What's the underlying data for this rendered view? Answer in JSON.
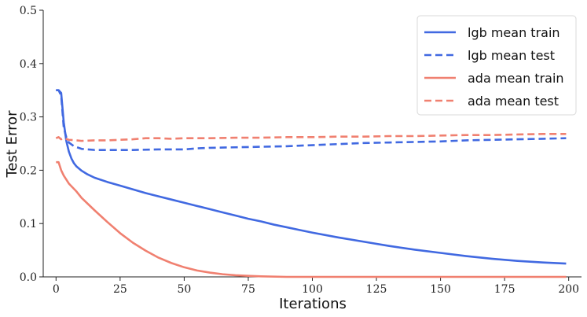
{
  "chart_data": {
    "type": "line",
    "title": "",
    "xlabel": "Iterations",
    "ylabel": "Test Error",
    "xlim": [
      -5,
      205
    ],
    "ylim": [
      0.0,
      0.5
    ],
    "x_ticks": [
      0,
      25,
      50,
      75,
      100,
      125,
      150,
      175,
      200
    ],
    "y_ticks": [
      0.0,
      0.1,
      0.2,
      0.3,
      0.4,
      0.5
    ],
    "x_tick_labels": [
      "0",
      "25",
      "50",
      "75",
      "100",
      "125",
      "150",
      "175",
      "200"
    ],
    "y_tick_labels": [
      "0.0",
      "0.1",
      "0.2",
      "0.3",
      "0.4",
      "0.5"
    ],
    "grid": false,
    "legend_position": "top-right",
    "series": [
      {
        "name": "lgb mean train",
        "color": "#4169e1",
        "dash": "solid",
        "points": [
          [
            0,
            0.35
          ],
          [
            1,
            0.35
          ],
          [
            2,
            0.345
          ],
          [
            3,
            0.29
          ],
          [
            4,
            0.255
          ],
          [
            5,
            0.235
          ],
          [
            6,
            0.222
          ],
          [
            7,
            0.213
          ],
          [
            8,
            0.207
          ],
          [
            10,
            0.199
          ],
          [
            12,
            0.193
          ],
          [
            15,
            0.186
          ],
          [
            20,
            0.178
          ],
          [
            25,
            0.171
          ],
          [
            30,
            0.164
          ],
          [
            35,
            0.157
          ],
          [
            40,
            0.151
          ],
          [
            45,
            0.145
          ],
          [
            50,
            0.139
          ],
          [
            55,
            0.133
          ],
          [
            60,
            0.127
          ],
          [
            65,
            0.121
          ],
          [
            70,
            0.115
          ],
          [
            75,
            0.109
          ],
          [
            80,
            0.104
          ],
          [
            85,
            0.098
          ],
          [
            90,
            0.093
          ],
          [
            95,
            0.088
          ],
          [
            100,
            0.083
          ],
          [
            110,
            0.074
          ],
          [
            120,
            0.066
          ],
          [
            130,
            0.058
          ],
          [
            140,
            0.051
          ],
          [
            150,
            0.045
          ],
          [
            160,
            0.039
          ],
          [
            170,
            0.034
          ],
          [
            180,
            0.03
          ],
          [
            190,
            0.027
          ],
          [
            199,
            0.025
          ]
        ]
      },
      {
        "name": "lgb mean test",
        "color": "#4169e1",
        "dash": "dashed",
        "points": [
          [
            0,
            0.35
          ],
          [
            1,
            0.35
          ],
          [
            2,
            0.34
          ],
          [
            3,
            0.28
          ],
          [
            4,
            0.262
          ],
          [
            5,
            0.252
          ],
          [
            7,
            0.245
          ],
          [
            10,
            0.24
          ],
          [
            15,
            0.238
          ],
          [
            20,
            0.238
          ],
          [
            30,
            0.238
          ],
          [
            40,
            0.239
          ],
          [
            50,
            0.239
          ],
          [
            55,
            0.241
          ],
          [
            60,
            0.242
          ],
          [
            70,
            0.243
          ],
          [
            80,
            0.244
          ],
          [
            90,
            0.245
          ],
          [
            100,
            0.247
          ],
          [
            110,
            0.249
          ],
          [
            120,
            0.251
          ],
          [
            130,
            0.252
          ],
          [
            140,
            0.253
          ],
          [
            150,
            0.254
          ],
          [
            160,
            0.256
          ],
          [
            170,
            0.257
          ],
          [
            180,
            0.258
          ],
          [
            190,
            0.259
          ],
          [
            199,
            0.26
          ]
        ]
      },
      {
        "name": "ada mean train",
        "color": "#f08070",
        "dash": "solid",
        "points": [
          [
            0,
            0.215
          ],
          [
            1,
            0.215
          ],
          [
            2,
            0.2
          ],
          [
            3,
            0.19
          ],
          [
            5,
            0.175
          ],
          [
            8,
            0.16
          ],
          [
            10,
            0.148
          ],
          [
            15,
            0.125
          ],
          [
            20,
            0.103
          ],
          [
            25,
            0.082
          ],
          [
            30,
            0.064
          ],
          [
            35,
            0.049
          ],
          [
            40,
            0.036
          ],
          [
            45,
            0.026
          ],
          [
            50,
            0.018
          ],
          [
            55,
            0.012
          ],
          [
            60,
            0.008
          ],
          [
            65,
            0.005
          ],
          [
            70,
            0.003
          ],
          [
            75,
            0.002
          ],
          [
            80,
            0.001
          ],
          [
            90,
            0.0
          ],
          [
            100,
            0.0
          ],
          [
            125,
            0.0
          ],
          [
            150,
            0.0
          ],
          [
            175,
            0.0
          ],
          [
            199,
            0.0
          ]
        ]
      },
      {
        "name": "ada mean test",
        "color": "#f08070",
        "dash": "dashed",
        "points": [
          [
            0,
            0.26
          ],
          [
            1,
            0.262
          ],
          [
            2,
            0.258
          ],
          [
            3,
            0.26
          ],
          [
            5,
            0.257
          ],
          [
            8,
            0.256
          ],
          [
            10,
            0.255
          ],
          [
            15,
            0.256
          ],
          [
            20,
            0.256
          ],
          [
            25,
            0.257
          ],
          [
            30,
            0.258
          ],
          [
            35,
            0.26
          ],
          [
            40,
            0.26
          ],
          [
            45,
            0.259
          ],
          [
            50,
            0.26
          ],
          [
            60,
            0.26
          ],
          [
            70,
            0.261
          ],
          [
            80,
            0.261
          ],
          [
            90,
            0.262
          ],
          [
            100,
            0.262
          ],
          [
            110,
            0.263
          ],
          [
            120,
            0.263
          ],
          [
            130,
            0.264
          ],
          [
            140,
            0.264
          ],
          [
            150,
            0.265
          ],
          [
            160,
            0.266
          ],
          [
            170,
            0.266
          ],
          [
            180,
            0.267
          ],
          [
            190,
            0.268
          ],
          [
            199,
            0.268
          ]
        ]
      }
    ]
  }
}
